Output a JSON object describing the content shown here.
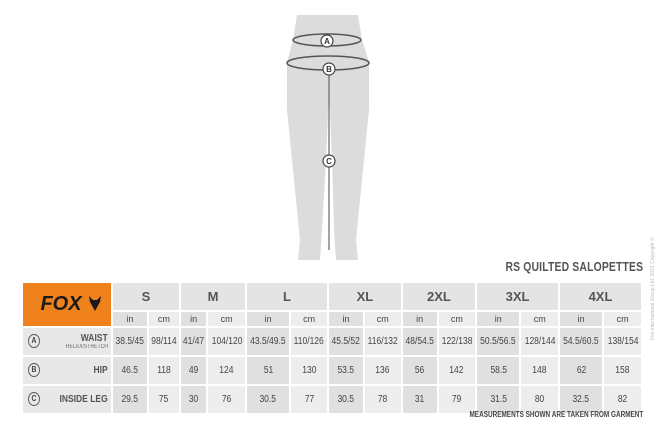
{
  "brand": {
    "logo_text": "FOX",
    "color": "#f0821e"
  },
  "figure": {
    "markers": [
      "A",
      "B",
      "C"
    ]
  },
  "title": "RS QUILTED SALOPETTES",
  "sizes": [
    "S",
    "M",
    "L",
    "XL",
    "2XL",
    "3XL",
    "4XL"
  ],
  "units": [
    "in",
    "cm"
  ],
  "rows": [
    {
      "marker": "A",
      "label": "WAIST",
      "sublabel": "RELAX/STRETCH",
      "values": [
        "38.5/45",
        "98/114",
        "41/47",
        "104/120",
        "43.5/49.5",
        "110/126",
        "45.5/52",
        "116/132",
        "48/54.5",
        "122/138",
        "50.5/56.5",
        "128/144",
        "54.5/60.5",
        "138/154"
      ]
    },
    {
      "marker": "B",
      "label": "HIP",
      "sublabel": "",
      "values": [
        "46.5",
        "118",
        "49",
        "124",
        "51",
        "130",
        "53.5",
        "136",
        "56",
        "142",
        "58.5",
        "148",
        "62",
        "158"
      ]
    },
    {
      "marker": "C",
      "label": "INSIDE LEG",
      "sublabel": "",
      "values": [
        "29.5",
        "75",
        "30",
        "76",
        "30.5",
        "77",
        "30.5",
        "78",
        "31",
        "79",
        "31.5",
        "80",
        "32.5",
        "82"
      ]
    }
  ],
  "footer": "MEASUREMENTS SHOWN ARE TAKEN FROM GARMENT",
  "copyright": "Fox International Group Ltd. 2021 Copyright ©"
}
